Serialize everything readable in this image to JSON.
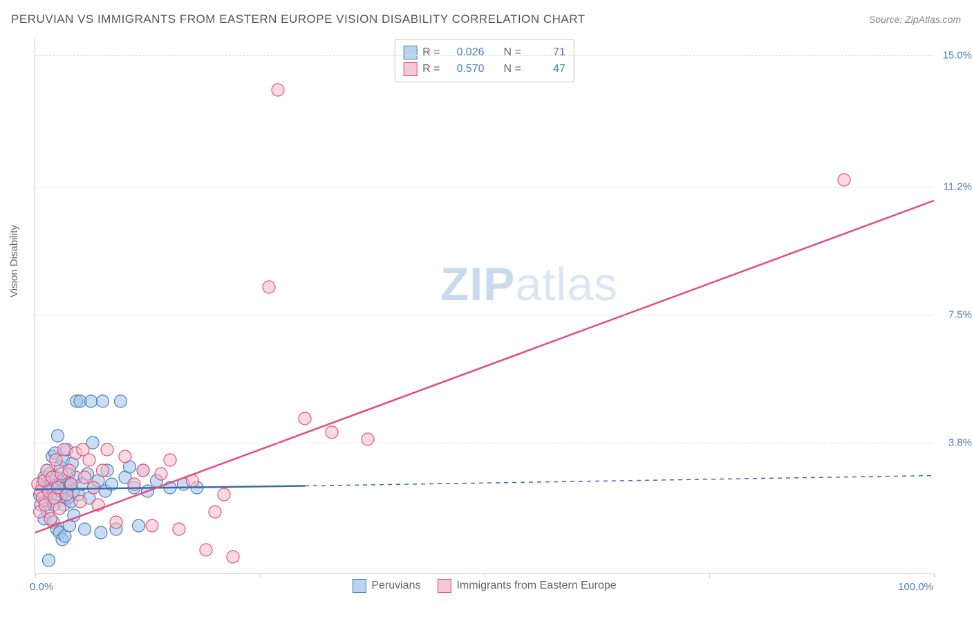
{
  "header": {
    "title": "PERUVIAN VS IMMIGRANTS FROM EASTERN EUROPE VISION DISABILITY CORRELATION CHART",
    "source": "Source: ZipAtlas.com"
  },
  "axes": {
    "ylabel": "Vision Disability",
    "xlim": [
      0,
      100
    ],
    "ylim": [
      0,
      15.5
    ],
    "xticks": [
      {
        "pos": 0,
        "label": "0.0%"
      },
      {
        "pos": 25,
        "label": ""
      },
      {
        "pos": 50,
        "label": ""
      },
      {
        "pos": 75,
        "label": ""
      },
      {
        "pos": 100,
        "label": "100.0%"
      }
    ],
    "yticks": [
      {
        "pos": 3.8,
        "label": "3.8%"
      },
      {
        "pos": 7.5,
        "label": "7.5%"
      },
      {
        "pos": 11.2,
        "label": "11.2%"
      },
      {
        "pos": 15.0,
        "label": "15.0%"
      }
    ],
    "grid_color": "#dddddd"
  },
  "watermark": {
    "zip": "ZIP",
    "atlas": "atlas"
  },
  "legend_top": {
    "rows": [
      {
        "swatch_fill": "#b8d4f0",
        "swatch_border": "#4a7ebb",
        "r_label": "R =",
        "r_value": "0.026",
        "n_label": "N =",
        "n_value": "71"
      },
      {
        "swatch_fill": "#f8c8d4",
        "swatch_border": "#e84a7a",
        "r_label": "R =",
        "r_value": "0.570",
        "n_label": "N =",
        "n_value": "47"
      }
    ]
  },
  "legend_bottom": {
    "items": [
      {
        "swatch_fill": "#b8d4f0",
        "swatch_border": "#4a7ebb",
        "label": "Peruvians"
      },
      {
        "swatch_fill": "#f8c8d4",
        "swatch_border": "#e84a7a",
        "label": "Immigrants from Eastern Europe"
      }
    ]
  },
  "chart": {
    "type": "scatter",
    "marker_radius": 9,
    "marker_opacity": 0.55,
    "series": [
      {
        "name": "peruvians",
        "fill": "#9cc3e8",
        "stroke": "#4a7ebb",
        "trend": {
          "x1": 0,
          "y1": 2.45,
          "x2": 30,
          "y2": 2.55,
          "dash_x2": 100,
          "dash_y2": 2.85,
          "stroke": "#2f6db3",
          "width": 2.5
        },
        "points": [
          [
            0.5,
            2.3
          ],
          [
            0.6,
            2.0
          ],
          [
            0.8,
            2.6
          ],
          [
            1.0,
            1.6
          ],
          [
            1.0,
            2.8
          ],
          [
            1.1,
            2.1
          ],
          [
            1.2,
            2.5
          ],
          [
            1.3,
            3.0
          ],
          [
            1.4,
            1.8
          ],
          [
            1.5,
            2.4
          ],
          [
            1.5,
            0.4
          ],
          [
            1.6,
            2.9
          ],
          [
            1.7,
            2.2
          ],
          [
            1.8,
            2.7
          ],
          [
            1.9,
            3.4
          ],
          [
            2.0,
            1.5
          ],
          [
            2.0,
            2.5
          ],
          [
            2.1,
            2.0
          ],
          [
            2.2,
            3.5
          ],
          [
            2.3,
            2.8
          ],
          [
            2.4,
            1.3
          ],
          [
            2.5,
            2.3
          ],
          [
            2.5,
            4.0
          ],
          [
            2.6,
            2.6
          ],
          [
            2.7,
            1.2
          ],
          [
            2.8,
            3.1
          ],
          [
            2.9,
            2.4
          ],
          [
            3.0,
            1.0
          ],
          [
            3.0,
            2.7
          ],
          [
            3.1,
            3.3
          ],
          [
            3.2,
            2.0
          ],
          [
            3.3,
            1.1
          ],
          [
            3.4,
            2.5
          ],
          [
            3.5,
            3.6
          ],
          [
            3.6,
            2.2
          ],
          [
            3.7,
            2.9
          ],
          [
            3.8,
            1.4
          ],
          [
            3.9,
            2.6
          ],
          [
            4.0,
            2.1
          ],
          [
            4.1,
            3.2
          ],
          [
            4.2,
            2.4
          ],
          [
            4.3,
            1.7
          ],
          [
            4.5,
            2.8
          ],
          [
            4.6,
            5.0
          ],
          [
            4.8,
            2.3
          ],
          [
            5.0,
            5.0
          ],
          [
            5.2,
            2.6
          ],
          [
            5.5,
            1.3
          ],
          [
            5.8,
            2.9
          ],
          [
            6.0,
            2.2
          ],
          [
            6.2,
            5.0
          ],
          [
            6.4,
            3.8
          ],
          [
            6.5,
            2.5
          ],
          [
            7.0,
            2.7
          ],
          [
            7.3,
            1.2
          ],
          [
            7.5,
            5.0
          ],
          [
            7.8,
            2.4
          ],
          [
            8.0,
            3.0
          ],
          [
            8.5,
            2.6
          ],
          [
            9.0,
            1.3
          ],
          [
            9.5,
            5.0
          ],
          [
            10.0,
            2.8
          ],
          [
            10.5,
            3.1
          ],
          [
            11.0,
            2.5
          ],
          [
            11.5,
            1.4
          ],
          [
            12.0,
            3.0
          ],
          [
            12.5,
            2.4
          ],
          [
            13.5,
            2.7
          ],
          [
            15.0,
            2.5
          ],
          [
            16.5,
            2.6
          ],
          [
            18.0,
            2.5
          ]
        ]
      },
      {
        "name": "eastern_europe",
        "fill": "#f5bcc9",
        "stroke": "#e84a7a",
        "trend": {
          "x1": 0,
          "y1": 1.2,
          "x2": 100,
          "y2": 10.8,
          "stroke": "#e84a7a",
          "width": 2.5
        },
        "points": [
          [
            0.3,
            2.6
          ],
          [
            0.5,
            1.8
          ],
          [
            0.6,
            2.4
          ],
          [
            0.8,
            2.2
          ],
          [
            1.0,
            2.7
          ],
          [
            1.1,
            2.0
          ],
          [
            1.3,
            3.0
          ],
          [
            1.5,
            2.4
          ],
          [
            1.7,
            1.6
          ],
          [
            1.9,
            2.8
          ],
          [
            2.1,
            2.2
          ],
          [
            2.3,
            3.3
          ],
          [
            2.5,
            2.5
          ],
          [
            2.7,
            1.9
          ],
          [
            2.9,
            2.9
          ],
          [
            3.2,
            3.6
          ],
          [
            3.5,
            2.3
          ],
          [
            3.8,
            3.0
          ],
          [
            4.0,
            2.6
          ],
          [
            4.5,
            3.5
          ],
          [
            5.0,
            2.1
          ],
          [
            5.3,
            3.6
          ],
          [
            5.5,
            2.8
          ],
          [
            6.0,
            3.3
          ],
          [
            6.5,
            2.5
          ],
          [
            7.0,
            2.0
          ],
          [
            7.5,
            3.0
          ],
          [
            8.0,
            3.6
          ],
          [
            9.0,
            1.5
          ],
          [
            10.0,
            3.4
          ],
          [
            11.0,
            2.6
          ],
          [
            12.0,
            3.0
          ],
          [
            13.0,
            1.4
          ],
          [
            14.0,
            2.9
          ],
          [
            15.0,
            3.3
          ],
          [
            16.0,
            1.3
          ],
          [
            17.5,
            2.7
          ],
          [
            19.0,
            0.7
          ],
          [
            20.0,
            1.8
          ],
          [
            21.0,
            2.3
          ],
          [
            22.0,
            0.5
          ],
          [
            26.0,
            8.3
          ],
          [
            30.0,
            4.5
          ],
          [
            33.0,
            4.1
          ],
          [
            37.0,
            3.9
          ],
          [
            27.0,
            14.0
          ],
          [
            90.0,
            11.4
          ]
        ]
      }
    ]
  }
}
